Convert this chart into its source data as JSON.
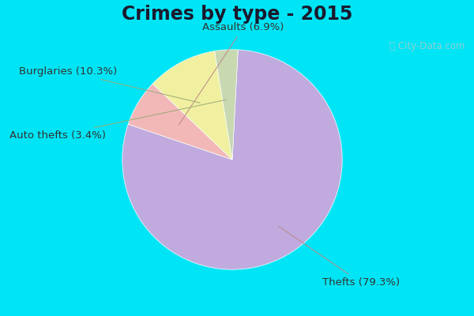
{
  "title": "Crimes by type - 2015",
  "labels": [
    "Thefts",
    "Assaults",
    "Burglaries",
    "Auto thefts"
  ],
  "values": [
    79.3,
    6.9,
    10.3,
    3.4
  ],
  "colors": [
    "#c0aade",
    "#f2b8b8",
    "#f0f0a0",
    "#c8d8b0"
  ],
  "background_cyan": "#00e5f5",
  "background_inner": "#d8eedf",
  "label_texts": [
    "Thefts (79.3%)",
    "Assaults (6.9%)",
    "Burglaries (10.3%)",
    "Auto thefts (3.4%)"
  ],
  "watermark": "ⓘ City-Data.com",
  "title_fontsize": 17,
  "label_fontsize": 9.5
}
